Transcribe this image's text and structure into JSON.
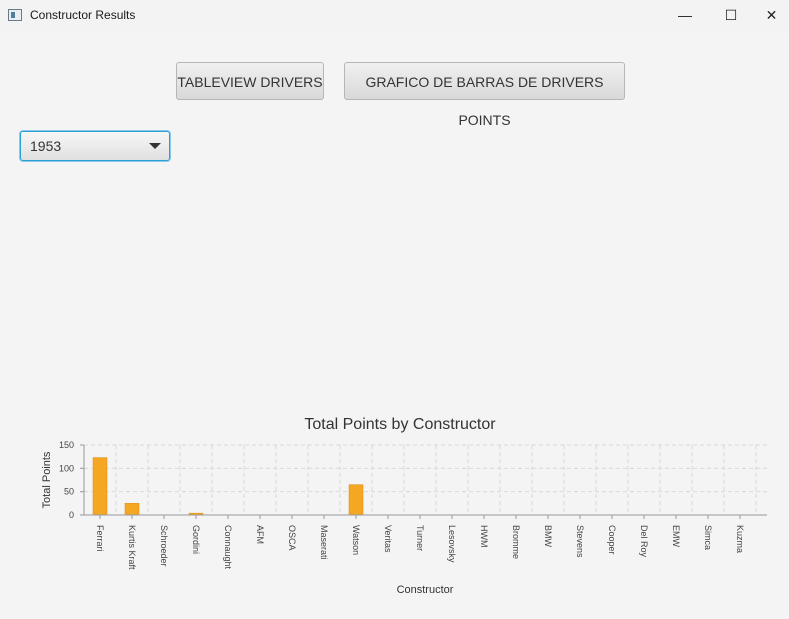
{
  "window": {
    "title": "Constructor Results",
    "icons": [
      "app-icon",
      "minimize-icon",
      "maximize-icon",
      "close-icon"
    ]
  },
  "toolbar": {
    "tableview_label": "TABLEVIEW DRIVERS",
    "bar_chart_label": "GRAFICO DE BARRAS DE DRIVERS POINTS"
  },
  "season_select": {
    "value": "1953"
  },
  "chart_data": {
    "type": "bar",
    "title": "Total Points by Constructor",
    "xlabel": "Constructor",
    "ylabel": "Total Points",
    "ylim": [
      0,
      150
    ],
    "yticks": [
      0,
      50,
      100,
      150
    ],
    "grid": true,
    "bar_color": "#f5a623",
    "categories": [
      "Ferrari",
      "Kurtis Kraft",
      "Schroeder",
      "Gordini",
      "Connaught",
      "AFM",
      "OSCA",
      "Maserati",
      "Watson",
      "Veritas",
      "Turner",
      "Lesovsky",
      "HWM",
      "Bromme",
      "BMW",
      "Stevens",
      "Cooper",
      "Del Roy",
      "EMW",
      "Simca",
      "Kuzma"
    ],
    "values": [
      123,
      25,
      0,
      4,
      0,
      0,
      0,
      0,
      65,
      0,
      0,
      0,
      0,
      0,
      0,
      0,
      0,
      0,
      0,
      0,
      0
    ]
  }
}
